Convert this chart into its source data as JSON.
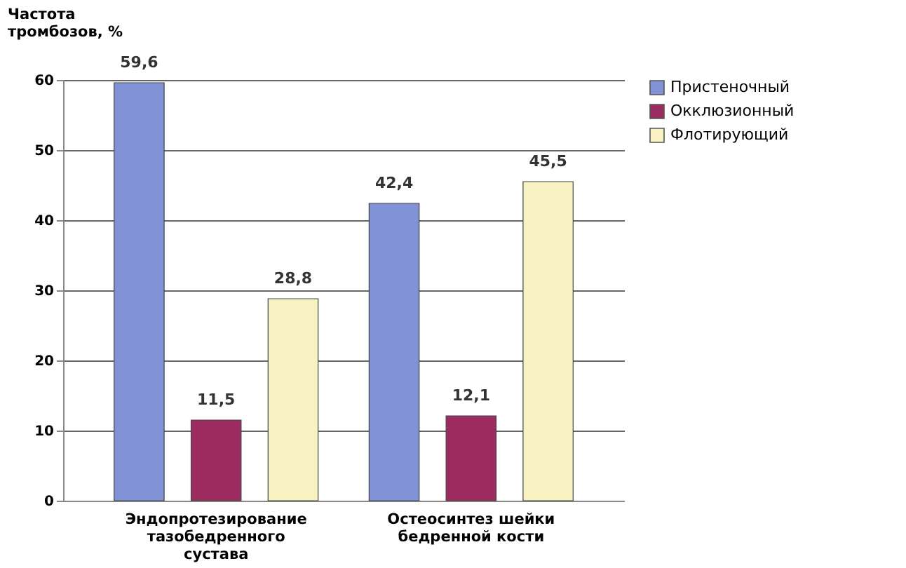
{
  "chart_data": {
    "type": "bar",
    "ylabel": "Частота тромбозов, %",
    "categories": [
      "Эндопротезирование тазобедренного сустава",
      "Остеосинтез шейки бедренной кости"
    ],
    "series": [
      {
        "name": "Пристеночный",
        "color": "#8193d6",
        "values": [
          59.6,
          42.4
        ],
        "value_labels": [
          "59,6",
          "42,4"
        ]
      },
      {
        "name": "Окклюзионный",
        "color": "#9c2c60",
        "values": [
          11.5,
          12.1
        ],
        "value_labels": [
          "11,5",
          "12,1"
        ]
      },
      {
        "name": "Флотирующий",
        "color": "#f8f2c2",
        "values": [
          28.8,
          45.5
        ],
        "value_labels": [
          "28,8",
          "45,5"
        ]
      }
    ],
    "ylim": [
      0,
      60
    ],
    "yticks": [
      0,
      10,
      20,
      30,
      40,
      50,
      60
    ],
    "grid": "y",
    "legend": "right"
  }
}
